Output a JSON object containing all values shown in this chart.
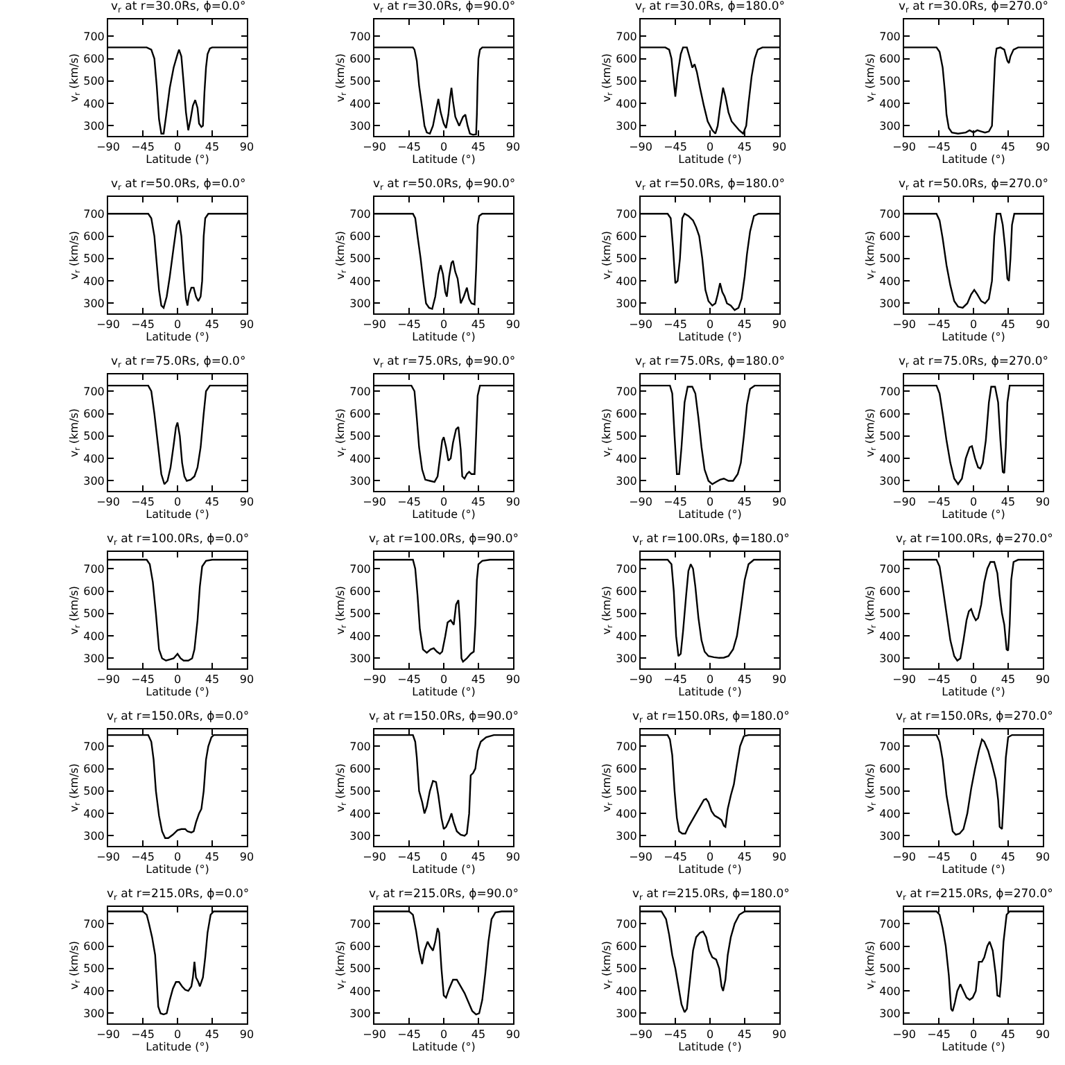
{
  "chart_data": [
    {
      "type": "line",
      "title": "v$_{r}$ at r=30.0Rs, ϕ=0.0°",
      "xlabel": "Latitude (°)",
      "ylabel": "v$_{r}$ (km/s)",
      "color": "#000000",
      "xlim": [
        -90,
        90
      ],
      "xticks": [
        -90,
        -45,
        0,
        45,
        90
      ],
      "ylim": [
        255,
        775
      ],
      "yticks": [
        300,
        400,
        500,
        600,
        700
      ],
      "x": [
        -90,
        -40,
        -34,
        -30,
        -27,
        -24,
        -21,
        -18,
        -15,
        -10,
        -5,
        0,
        2,
        5,
        8,
        11,
        14,
        17,
        20,
        23,
        26,
        28,
        31,
        33,
        35,
        37,
        39,
        42,
        45,
        90
      ],
      "values": [
        650,
        650,
        640,
        600,
        480,
        330,
        265,
        265,
        340,
        470,
        560,
        620,
        640,
        610,
        490,
        360,
        280,
        330,
        390,
        415,
        380,
        310,
        295,
        300,
        450,
        560,
        620,
        645,
        650,
        650
      ]
    },
    {
      "type": "line",
      "title": "v$_{r}$ at r=30.0Rs, ϕ=90.0°",
      "xlabel": "Latitude (°)",
      "ylabel": "v$_{r}$ (km/s)",
      "color": "#000000",
      "xlim": [
        -90,
        90
      ],
      "xticks": [
        -90,
        -45,
        0,
        45,
        90
      ],
      "ylim": [
        255,
        775
      ],
      "yticks": [
        300,
        400,
        500,
        600,
        700
      ],
      "x": [
        -90,
        -40,
        -38,
        -35,
        -32,
        -28,
        -25,
        -22,
        -18,
        -14,
        -10,
        -7,
        -4,
        0,
        3,
        6,
        8,
        10,
        12,
        15,
        20,
        25,
        28,
        31,
        34,
        38,
        42,
        43,
        44,
        45,
        47,
        50,
        90
      ],
      "values": [
        650,
        650,
        640,
        590,
        480,
        380,
        300,
        270,
        265,
        300,
        370,
        420,
        360,
        310,
        290,
        350,
        420,
        470,
        410,
        340,
        300,
        340,
        350,
        300,
        265,
        260,
        262,
        350,
        500,
        600,
        640,
        650,
        650
      ]
    },
    {
      "type": "line",
      "title": "v$_{r}$ at r=30.0Rs, ϕ=180.0°",
      "xlabel": "Latitude (°)",
      "ylabel": "v$_{r}$ (km/s)",
      "color": "#000000",
      "xlim": [
        -90,
        90
      ],
      "xticks": [
        -90,
        -45,
        0,
        45,
        90
      ],
      "ylim": [
        255,
        775
      ],
      "yticks": [
        300,
        400,
        500,
        600,
        700
      ],
      "x": [
        -90,
        -58,
        -53,
        -50,
        -48,
        -45,
        -42,
        -38,
        -35,
        -30,
        -26,
        -23,
        -20,
        -17,
        -13,
        -8,
        -3,
        3,
        7,
        10,
        13,
        17,
        20,
        24,
        28,
        33,
        38,
        43,
        47,
        50,
        54,
        58,
        62,
        68,
        90
      ],
      "values": [
        650,
        650,
        640,
        600,
        530,
        430,
        530,
        620,
        650,
        650,
        600,
        560,
        575,
        540,
        470,
        390,
        320,
        280,
        265,
        300,
        380,
        470,
        430,
        360,
        320,
        300,
        280,
        265,
        300,
        400,
        520,
        600,
        640,
        650,
        650
      ]
    },
    {
      "type": "line",
      "title": "v$_{r}$ at r=30.0Rs, ϕ=270.0°",
      "xlabel": "Latitude (°)",
      "ylabel": "v$_{r}$ (km/s)",
      "color": "#000000",
      "xlim": [
        -90,
        90
      ],
      "xticks": [
        -90,
        -45,
        0,
        45,
        90
      ],
      "ylim": [
        255,
        775
      ],
      "yticks": [
        300,
        400,
        500,
        600,
        700
      ],
      "x": [
        -90,
        -48,
        -44,
        -40,
        -37,
        -35,
        -32,
        -28,
        -20,
        -10,
        -5,
        0,
        5,
        10,
        15,
        20,
        24,
        26,
        28,
        30,
        35,
        40,
        44,
        46,
        48,
        52,
        58,
        90
      ],
      "values": [
        650,
        650,
        630,
        560,
        450,
        350,
        290,
        270,
        265,
        270,
        280,
        270,
        280,
        275,
        270,
        275,
        300,
        450,
        600,
        645,
        650,
        640,
        590,
        580,
        610,
        640,
        650,
        650
      ]
    },
    {
      "type": "line",
      "title": "v$_{r}$ at r=50.0Rs, ϕ=0.0°",
      "xlabel": "Latitude (°)",
      "ylabel": "v$_{r}$ (km/s)",
      "color": "#000000",
      "xlim": [
        -90,
        90
      ],
      "xticks": [
        -90,
        -45,
        0,
        45,
        90
      ],
      "ylim": [
        255,
        775
      ],
      "yticks": [
        300,
        400,
        500,
        600,
        700
      ],
      "x": [
        -90,
        -38,
        -34,
        -30,
        -27,
        -24,
        -21,
        -18,
        -14,
        -10,
        -5,
        -1,
        2,
        5,
        8,
        11,
        13,
        15,
        18,
        21,
        24,
        27,
        30,
        32,
        34,
        36,
        40,
        90
      ],
      "values": [
        700,
        700,
        680,
        600,
        480,
        360,
        290,
        280,
        330,
        420,
        550,
        650,
        670,
        600,
        450,
        320,
        290,
        340,
        370,
        370,
        330,
        310,
        330,
        400,
        600,
        680,
        700,
        700
      ]
    },
    {
      "type": "line",
      "title": "v$_{r}$ at r=50.0Rs, ϕ=90.0°",
      "xlabel": "Latitude (°)",
      "ylabel": "v$_{r}$ (km/s)",
      "color": "#000000",
      "xlim": [
        -90,
        90
      ],
      "xticks": [
        -90,
        -45,
        0,
        45,
        90
      ],
      "ylim": [
        255,
        775
      ],
      "yticks": [
        300,
        400,
        500,
        600,
        700
      ],
      "x": [
        -90,
        -40,
        -37,
        -34,
        -30,
        -26,
        -23,
        -19,
        -15,
        -11,
        -7,
        -4,
        -1,
        2,
        4,
        7,
        10,
        12,
        15,
        18,
        20,
        22,
        26,
        30,
        33,
        36,
        40,
        42,
        44,
        46,
        50,
        90
      ],
      "values": [
        700,
        700,
        680,
        600,
        500,
        380,
        300,
        280,
        275,
        330,
        430,
        470,
        430,
        350,
        330,
        420,
        480,
        490,
        440,
        410,
        360,
        300,
        330,
        370,
        320,
        300,
        295,
        450,
        650,
        690,
        700,
        700
      ]
    },
    {
      "type": "line",
      "title": "v$_{r}$ at r=50.0Rs, ϕ=180.0°",
      "xlabel": "Latitude (°)",
      "ylabel": "v$_{r}$ (km/s)",
      "color": "#000000",
      "xlim": [
        -90,
        90
      ],
      "xticks": [
        -90,
        -45,
        0,
        45,
        90
      ],
      "ylim": [
        255,
        775
      ],
      "yticks": [
        300,
        400,
        500,
        600,
        700
      ],
      "x": [
        -90,
        -55,
        -51,
        -48,
        -45,
        -42,
        -39,
        -36,
        -33,
        -28,
        -22,
        -18,
        -14,
        -10,
        -6,
        -2,
        3,
        7,
        10,
        13,
        16,
        19,
        22,
        27,
        32,
        37,
        41,
        45,
        48,
        52,
        57,
        63,
        90
      ],
      "values": [
        700,
        700,
        680,
        550,
        390,
        400,
        500,
        680,
        700,
        690,
        670,
        640,
        600,
        500,
        360,
        310,
        290,
        300,
        340,
        390,
        350,
        330,
        300,
        290,
        270,
        280,
        320,
        420,
        520,
        620,
        690,
        700,
        700
      ]
    },
    {
      "type": "line",
      "title": "v$_{r}$ at r=50.0Rs, ϕ=270.0°",
      "xlabel": "Latitude (°)",
      "ylabel": "v$_{r}$ (km/s)",
      "color": "#000000",
      "xlim": [
        -90,
        90
      ],
      "xticks": [
        -90,
        -45,
        0,
        45,
        90
      ],
      "ylim": [
        255,
        775
      ],
      "yticks": [
        300,
        400,
        500,
        600,
        700
      ],
      "x": [
        -90,
        -48,
        -44,
        -40,
        -35,
        -30,
        -25,
        -20,
        -14,
        -8,
        -3,
        1,
        5,
        10,
        15,
        20,
        24,
        27,
        30,
        35,
        38,
        41,
        44,
        46,
        48,
        50,
        53,
        90
      ],
      "values": [
        700,
        700,
        670,
        590,
        470,
        380,
        310,
        285,
        280,
        300,
        340,
        360,
        340,
        310,
        300,
        320,
        400,
        600,
        700,
        700,
        650,
        550,
        410,
        400,
        500,
        650,
        700,
        700
      ]
    },
    {
      "type": "line",
      "title": "v$_{r}$ at r=75.0Rs, ϕ=0.0°",
      "xlabel": "Latitude (°)",
      "ylabel": "v$_{r}$ (km/s)",
      "color": "#000000",
      "xlim": [
        -90,
        90
      ],
      "xticks": [
        -90,
        -45,
        0,
        45,
        90
      ],
      "ylim": [
        255,
        775
      ],
      "yticks": [
        300,
        400,
        500,
        600,
        700
      ],
      "x": [
        -90,
        -38,
        -34,
        -30,
        -25,
        -21,
        -17,
        -13,
        -9,
        -5,
        -2,
        0,
        3,
        6,
        9,
        12,
        17,
        22,
        26,
        30,
        34,
        37,
        42,
        90
      ],
      "values": [
        725,
        725,
        700,
        600,
        450,
        330,
        285,
        300,
        360,
        460,
        540,
        560,
        500,
        380,
        320,
        300,
        305,
        320,
        360,
        450,
        600,
        700,
        725,
        725
      ]
    },
    {
      "type": "line",
      "title": "v$_{r}$ at r=75.0Rs, ϕ=90.0°",
      "xlabel": "Latitude (°)",
      "ylabel": "v$_{r}$ (km/s)",
      "color": "#000000",
      "xlim": [
        -90,
        90
      ],
      "xticks": [
        -90,
        -45,
        0,
        45,
        90
      ],
      "ylim": [
        255,
        775
      ],
      "yticks": [
        300,
        400,
        500,
        600,
        700
      ],
      "x": [
        -90,
        -42,
        -38,
        -35,
        -32,
        -28,
        -24,
        -18,
        -12,
        -8,
        -5,
        -2,
        0,
        3,
        6,
        9,
        12,
        16,
        19,
        22,
        24,
        27,
        30,
        33,
        36,
        40,
        42,
        44,
        47,
        90
      ],
      "values": [
        725,
        725,
        700,
        580,
        450,
        350,
        305,
        300,
        295,
        320,
        400,
        480,
        495,
        450,
        390,
        400,
        470,
        530,
        540,
        440,
        320,
        310,
        330,
        340,
        330,
        330,
        500,
        680,
        725,
        725
      ]
    },
    {
      "type": "line",
      "title": "v$_{r}$ at r=75.0Rs, ϕ=180.0°",
      "xlabel": "Latitude (°)",
      "ylabel": "v$_{r}$ (km/s)",
      "color": "#000000",
      "xlim": [
        -90,
        90
      ],
      "xticks": [
        -90,
        -45,
        0,
        45,
        90
      ],
      "ylim": [
        255,
        775
      ],
      "yticks": [
        300,
        400,
        500,
        600,
        700
      ],
      "x": [
        -90,
        -52,
        -49,
        -46,
        -43,
        -40,
        -37,
        -33,
        -29,
        -23,
        -19,
        -15,
        -11,
        -7,
        -2,
        3,
        8,
        13,
        18,
        24,
        30,
        36,
        40,
        44,
        48,
        52,
        58,
        90
      ],
      "values": [
        725,
        725,
        690,
        500,
        330,
        330,
        450,
        650,
        720,
        720,
        690,
        580,
        450,
        350,
        300,
        285,
        295,
        305,
        310,
        300,
        300,
        330,
        380,
        500,
        640,
        710,
        725,
        725
      ]
    },
    {
      "type": "line",
      "title": "v$_{r}$ at r=75.0Rs, ϕ=270.0°",
      "xlabel": "Latitude (°)",
      "ylabel": "v$_{r}$ (km/s)",
      "color": "#000000",
      "xlim": [
        -90,
        90
      ],
      "xticks": [
        -90,
        -45,
        0,
        45,
        90
      ],
      "ylim": [
        255,
        775
      ],
      "yticks": [
        300,
        400,
        500,
        600,
        700
      ],
      "x": [
        -90,
        -48,
        -44,
        -40,
        -35,
        -30,
        -25,
        -20,
        -15,
        -10,
        -5,
        -2,
        2,
        6,
        9,
        12,
        16,
        20,
        23,
        28,
        32,
        35,
        38,
        40,
        42,
        44,
        47,
        90
      ],
      "values": [
        725,
        725,
        690,
        600,
        480,
        380,
        310,
        285,
        310,
        400,
        450,
        455,
        400,
        360,
        355,
        380,
        480,
        650,
        720,
        720,
        650,
        480,
        340,
        335,
        450,
        650,
        725,
        725
      ]
    },
    {
      "type": "line",
      "title": "v$_{r}$ at r=100.0Rs, ϕ=0.0°",
      "xlabel": "Latitude (°)",
      "ylabel": "v$_{r}$ (km/s)",
      "color": "#000000",
      "xlim": [
        -90,
        90
      ],
      "xticks": [
        -90,
        -45,
        0,
        45,
        90
      ],
      "ylim": [
        255,
        775
      ],
      "yticks": [
        300,
        400,
        500,
        600,
        700
      ],
      "x": [
        -90,
        -40,
        -36,
        -32,
        -28,
        -24,
        -20,
        -15,
        -10,
        -5,
        0,
        4,
        8,
        14,
        19,
        22,
        26,
        29,
        32,
        37,
        45,
        90
      ],
      "values": [
        740,
        740,
        720,
        640,
        500,
        340,
        300,
        290,
        295,
        300,
        320,
        300,
        290,
        290,
        300,
        340,
        470,
        620,
        710,
        735,
        740,
        740
      ]
    },
    {
      "type": "line",
      "title": "v$_{r}$ at r=100.0Rs, ϕ=90.0°",
      "xlabel": "Latitude (°)",
      "ylabel": "v$_{r}$ (km/s)",
      "color": "#000000",
      "xlim": [
        -90,
        90
      ],
      "xticks": [
        -90,
        -45,
        0,
        45,
        90
      ],
      "ylim": [
        255,
        775
      ],
      "yticks": [
        300,
        400,
        500,
        600,
        700
      ],
      "x": [
        -90,
        -40,
        -37,
        -34,
        -31,
        -27,
        -22,
        -17,
        -13,
        -9,
        -5,
        -2,
        2,
        5,
        9,
        13,
        16,
        19,
        21,
        23,
        25,
        30,
        35,
        39,
        41,
        43,
        45,
        50,
        60,
        90
      ],
      "values": [
        740,
        740,
        700,
        580,
        430,
        340,
        325,
        340,
        345,
        330,
        320,
        330,
        400,
        460,
        470,
        450,
        540,
        560,
        460,
        300,
        285,
        300,
        320,
        330,
        450,
        650,
        720,
        735,
        740,
        740
      ]
    },
    {
      "type": "line",
      "title": "v$_{r}$ at r=100.0Rs, ϕ=180.0°",
      "xlabel": "Latitude (°)",
      "ylabel": "v$_{r}$ (km/s)",
      "color": "#000000",
      "xlim": [
        -90,
        90
      ],
      "xticks": [
        -90,
        -45,
        0,
        45,
        90
      ],
      "ylim": [
        255,
        775
      ],
      "yticks": [
        300,
        400,
        500,
        600,
        700
      ],
      "x": [
        -90,
        -55,
        -50,
        -47,
        -44,
        -41,
        -38,
        -35,
        -31,
        -28,
        -25,
        -22,
        -19,
        -15,
        -11,
        -7,
        -2,
        5,
        12,
        18,
        24,
        30,
        35,
        40,
        45,
        50,
        57,
        90
      ],
      "values": [
        740,
        740,
        720,
        600,
        400,
        310,
        320,
        420,
        580,
        690,
        720,
        700,
        620,
        480,
        380,
        330,
        310,
        305,
        302,
        303,
        310,
        340,
        400,
        520,
        650,
        720,
        740,
        740
      ]
    },
    {
      "type": "line",
      "title": "v$_{r}$ at r=100.0Rs, ϕ=270.0°",
      "xlabel": "Latitude (°)",
      "ylabel": "v$_{r}$ (km/s)",
      "color": "#000000",
      "xlim": [
        -90,
        90
      ],
      "xticks": [
        -90,
        -45,
        0,
        45,
        90
      ],
      "ylim": [
        255,
        775
      ],
      "yticks": [
        300,
        400,
        500,
        600,
        700
      ],
      "x": [
        -90,
        -48,
        -44,
        -40,
        -35,
        -30,
        -25,
        -21,
        -17,
        -13,
        -9,
        -6,
        -3,
        0,
        3,
        6,
        10,
        14,
        18,
        22,
        27,
        31,
        34,
        37,
        40,
        43,
        45,
        47,
        49,
        52,
        58,
        90
      ],
      "values": [
        740,
        740,
        710,
        620,
        500,
        380,
        310,
        290,
        300,
        380,
        470,
        510,
        520,
        490,
        470,
        480,
        540,
        640,
        700,
        730,
        730,
        680,
        580,
        500,
        450,
        340,
        335,
        450,
        650,
        730,
        740,
        740
      ]
    },
    {
      "type": "line",
      "title": "v$_{r}$ at r=150.0Rs, ϕ=0.0°",
      "xlabel": "Latitude (°)",
      "ylabel": "v$_{r}$ (km/s)",
      "color": "#000000",
      "xlim": [
        -90,
        90
      ],
      "xticks": [
        -90,
        -45,
        0,
        45,
        90
      ],
      "ylim": [
        255,
        775
      ],
      "yticks": [
        300,
        400,
        500,
        600,
        700
      ],
      "x": [
        -90,
        -38,
        -34,
        -31,
        -28,
        -24,
        -20,
        -16,
        -12,
        -6,
        0,
        5,
        10,
        13,
        18,
        21,
        24,
        28,
        31,
        34,
        37,
        40,
        44,
        47,
        90
      ],
      "values": [
        750,
        750,
        720,
        640,
        500,
        390,
        320,
        290,
        290,
        305,
        325,
        330,
        330,
        320,
        315,
        320,
        360,
        400,
        420,
        500,
        640,
        700,
        740,
        750,
        750
      ]
    },
    {
      "type": "line",
      "title": "v$_{r}$ at r=150.0Rs, ϕ=90.0°",
      "xlabel": "Latitude (°)",
      "ylabel": "v$_{r}$ (km/s)",
      "color": "#000000",
      "xlim": [
        -90,
        90
      ],
      "xticks": [
        -90,
        -45,
        0,
        45,
        90
      ],
      "ylim": [
        255,
        775
      ],
      "yticks": [
        300,
        400,
        500,
        600,
        700
      ],
      "x": [
        -90,
        -40,
        -37,
        -35,
        -32,
        -28,
        -25,
        -22,
        -18,
        -14,
        -10,
        -7,
        -3,
        0,
        3,
        7,
        10,
        13,
        17,
        22,
        27,
        30,
        33,
        35,
        38,
        41,
        44,
        48,
        55,
        65,
        90
      ],
      "values": [
        750,
        750,
        720,
        650,
        500,
        450,
        400,
        430,
        500,
        545,
        540,
        480,
        380,
        330,
        340,
        370,
        400,
        360,
        320,
        305,
        300,
        310,
        400,
        570,
        580,
        600,
        680,
        720,
        740,
        750,
        750
      ]
    },
    {
      "type": "line",
      "title": "v$_{r}$ at r=150.0Rs, ϕ=180.0°",
      "xlabel": "Latitude (°)",
      "ylabel": "v$_{r}$ (km/s)",
      "color": "#000000",
      "xlim": [
        -90,
        90
      ],
      "xticks": [
        -90,
        -45,
        0,
        45,
        90
      ],
      "ylim": [
        255,
        775
      ],
      "yticks": [
        300,
        400,
        500,
        600,
        700
      ],
      "x": [
        -90,
        -55,
        -52,
        -49,
        -46,
        -43,
        -40,
        -36,
        -32,
        -28,
        -23,
        -18,
        -13,
        -8,
        -5,
        -2,
        2,
        6,
        11,
        15,
        18,
        20,
        23,
        27,
        31,
        35,
        39,
        44,
        50,
        90
      ],
      "values": [
        750,
        750,
        730,
        660,
        500,
        380,
        320,
        310,
        310,
        340,
        370,
        400,
        430,
        460,
        465,
        450,
        410,
        390,
        380,
        370,
        345,
        340,
        420,
        480,
        530,
        620,
        700,
        745,
        750,
        750
      ]
    },
    {
      "type": "line",
      "title": "v$_{r}$ at r=150.0Rs, ϕ=270.0°",
      "xlabel": "Latitude (°)",
      "ylabel": "v$_{r}$ (km/s)",
      "color": "#000000",
      "xlim": [
        -90,
        90
      ],
      "xticks": [
        -90,
        -45,
        0,
        45,
        90
      ],
      "ylim": [
        255,
        775
      ],
      "yticks": [
        300,
        400,
        500,
        600,
        700
      ],
      "x": [
        -90,
        -48,
        -44,
        -40,
        -35,
        -31,
        -27,
        -23,
        -18,
        -13,
        -8,
        -3,
        2,
        7,
        11,
        14,
        19,
        24,
        29,
        32,
        34,
        37,
        39,
        42,
        45,
        50,
        90
      ],
      "values": [
        750,
        750,
        720,
        640,
        480,
        400,
        320,
        305,
        310,
        330,
        400,
        510,
        600,
        680,
        730,
        720,
        680,
        620,
        550,
        460,
        340,
        330,
        450,
        650,
        740,
        750,
        750
      ]
    },
    {
      "type": "line",
      "title": "v$_{r}$ at r=215.0Rs, ϕ=0.0°",
      "xlabel": "Latitude (°)",
      "ylabel": "v$_{r}$ (km/s)",
      "color": "#000000",
      "xlim": [
        -90,
        90
      ],
      "xticks": [
        -90,
        -45,
        0,
        45,
        90
      ],
      "ylim": [
        255,
        775
      ],
      "yticks": [
        300,
        400,
        500,
        600,
        700
      ],
      "x": [
        -90,
        -45,
        -40,
        -37,
        -33,
        -29,
        -27,
        -25,
        -22,
        -18,
        -14,
        -10,
        -6,
        -2,
        2,
        6,
        10,
        14,
        18,
        20,
        22,
        24,
        27,
        29,
        33,
        36,
        39,
        43,
        47,
        90
      ],
      "values": [
        755,
        755,
        740,
        700,
        640,
        560,
        450,
        330,
        300,
        295,
        300,
        360,
        410,
        440,
        440,
        420,
        405,
        400,
        420,
        460,
        530,
        460,
        440,
        420,
        460,
        550,
        660,
        740,
        755,
        755
      ]
    },
    {
      "type": "line",
      "title": "v$_{r}$ at r=215.0Rs, ϕ=90.0°",
      "xlabel": "Latitude (°)",
      "ylabel": "v$_{r}$ (km/s)",
      "color": "#000000",
      "xlim": [
        -90,
        90
      ],
      "xticks": [
        -90,
        -45,
        0,
        45,
        90
      ],
      "ylim": [
        255,
        775
      ],
      "yticks": [
        300,
        400,
        500,
        600,
        700
      ],
      "x": [
        -90,
        -45,
        -40,
        -36,
        -32,
        -28,
        -25,
        -21,
        -18,
        -14,
        -11,
        -8,
        -6,
        -3,
        0,
        3,
        7,
        12,
        17,
        22,
        27,
        32,
        37,
        42,
        46,
        50,
        54,
        58,
        62,
        67,
        75,
        90
      ],
      "values": [
        755,
        755,
        740,
        670,
        580,
        520,
        580,
        620,
        600,
        580,
        620,
        680,
        660,
        500,
        380,
        370,
        410,
        450,
        450,
        420,
        390,
        350,
        310,
        295,
        300,
        360,
        480,
        620,
        720,
        750,
        755,
        755
      ]
    },
    {
      "type": "line",
      "title": "v$_{r}$ at r=215.0Rs, ϕ=180.0°",
      "xlabel": "Latitude (°)",
      "ylabel": "v$_{r}$ (km/s)",
      "color": "#000000",
      "xlim": [
        -90,
        90
      ],
      "xticks": [
        -90,
        -45,
        0,
        45,
        90
      ],
      "ylim": [
        255,
        775
      ],
      "yticks": [
        300,
        400,
        500,
        600,
        700
      ],
      "x": [
        -90,
        -63,
        -57,
        -53,
        -49,
        -45,
        -41,
        -37,
        -33,
        -30,
        -26,
        -22,
        -18,
        -13,
        -9,
        -5,
        -1,
        3,
        8,
        12,
        15,
        17,
        20,
        23,
        27,
        32,
        38,
        45,
        90
      ],
      "values": [
        755,
        755,
        720,
        650,
        560,
        500,
        420,
        340,
        305,
        320,
        450,
        580,
        640,
        660,
        665,
        640,
        580,
        550,
        540,
        500,
        420,
        400,
        450,
        560,
        640,
        700,
        740,
        755,
        755
      ]
    },
    {
      "type": "line",
      "title": "v$_{r}$ at r=215.0Rs, ϕ=270.0°",
      "xlabel": "Latitude (°)",
      "ylabel": "v$_{r}$ (km/s)",
      "color": "#000000",
      "xlim": [
        -90,
        90
      ],
      "xticks": [
        -90,
        -45,
        0,
        45,
        90
      ],
      "ylim": [
        255,
        775
      ],
      "yticks": [
        300,
        400,
        500,
        600,
        700
      ],
      "x": [
        -90,
        -48,
        -44,
        -40,
        -36,
        -32,
        -29,
        -27,
        -24,
        -21,
        -17,
        -13,
        -9,
        -5,
        -1,
        3,
        7,
        11,
        14,
        18,
        21,
        25,
        29,
        31,
        34,
        36,
        39,
        43,
        47,
        90
      ],
      "values": [
        755,
        755,
        740,
        680,
        600,
        470,
        320,
        310,
        350,
        400,
        430,
        400,
        370,
        360,
        370,
        400,
        530,
        530,
        550,
        600,
        620,
        580,
        470,
        380,
        375,
        450,
        620,
        740,
        755,
        755
      ]
    }
  ]
}
